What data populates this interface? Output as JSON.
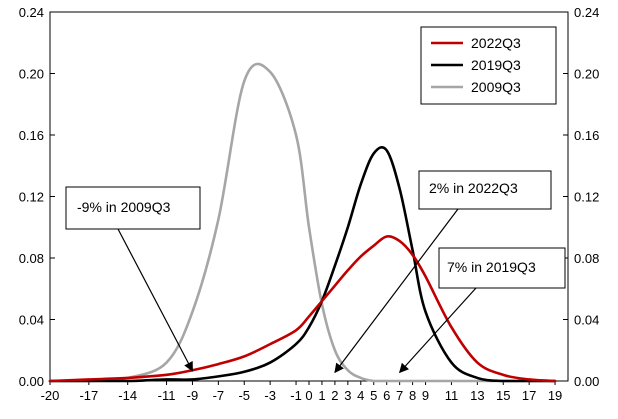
{
  "chart_data": {
    "type": "line",
    "title": "",
    "xlabel": "",
    "ylabel": "",
    "xlim": [
      -20,
      20
    ],
    "ylim": [
      0,
      0.24
    ],
    "grid": false,
    "legend_position": "top-right",
    "x_tick_labels": [
      "-20",
      "-17",
      "-14",
      "-11",
      "-9",
      "-7",
      "-5",
      "-3",
      "-1",
      "0",
      "1",
      "2",
      "3",
      "4",
      "5",
      "6",
      "7",
      "8",
      "9",
      "11",
      "13",
      "15",
      "17",
      "19"
    ],
    "y_tick_labels": [
      "0.00",
      "0.04",
      "0.08",
      "0.12",
      "0.16",
      "0.20",
      "0.24"
    ],
    "series": [
      {
        "name": "2022Q3",
        "color": "#c00000",
        "x": [
          -20,
          -17,
          -14,
          -11,
          -9,
          -7,
          -5,
          -3,
          -1,
          0,
          1,
          2,
          3,
          4,
          5,
          6,
          7,
          8,
          9,
          11,
          13,
          15,
          17,
          19
        ],
        "y": [
          0.0,
          0.001,
          0.002,
          0.004,
          0.007,
          0.011,
          0.016,
          0.024,
          0.033,
          0.042,
          0.052,
          0.062,
          0.072,
          0.081,
          0.088,
          0.094,
          0.091,
          0.082,
          0.068,
          0.035,
          0.012,
          0.004,
          0.001,
          0.0
        ]
      },
      {
        "name": "2019Q3",
        "color": "#000000",
        "x": [
          -20,
          -17,
          -14,
          -11,
          -9,
          -7,
          -5,
          -3,
          -1,
          0,
          1,
          2,
          3,
          4,
          5,
          6,
          7,
          8,
          9,
          11,
          13,
          15,
          17,
          19
        ],
        "y": [
          0.0,
          0.0,
          0.0,
          0.001,
          0.001,
          0.003,
          0.006,
          0.012,
          0.024,
          0.035,
          0.052,
          0.075,
          0.1,
          0.128,
          0.148,
          0.15,
          0.125,
          0.085,
          0.045,
          0.012,
          0.002,
          0.0,
          0.0,
          0.0
        ]
      },
      {
        "name": "2009Q3",
        "color": "#a6a6a6",
        "x": [
          -20,
          -17,
          -14,
          -11,
          -9,
          -7,
          -5,
          -3,
          -1,
          0,
          1,
          2,
          3,
          4,
          5,
          6,
          7,
          8,
          9,
          11,
          13,
          15,
          17,
          19
        ],
        "y": [
          0.0,
          0.0,
          0.002,
          0.012,
          0.045,
          0.105,
          0.195,
          0.201,
          0.16,
          0.1,
          0.05,
          0.02,
          0.007,
          0.002,
          0.0,
          0.0,
          0.0,
          0.0,
          0.0,
          0.0,
          0.0,
          0.0,
          0.0,
          0.0
        ]
      }
    ],
    "annotations": [
      {
        "text": "-9% in 2009Q3",
        "points_to_x": -9,
        "points_to_y": 0.004
      },
      {
        "text": "2% in 2022Q3",
        "points_to_x": 2,
        "points_to_y": 0.003
      },
      {
        "text": "7% in 2019Q3",
        "points_to_x": 7,
        "points_to_y": 0.003
      }
    ]
  }
}
